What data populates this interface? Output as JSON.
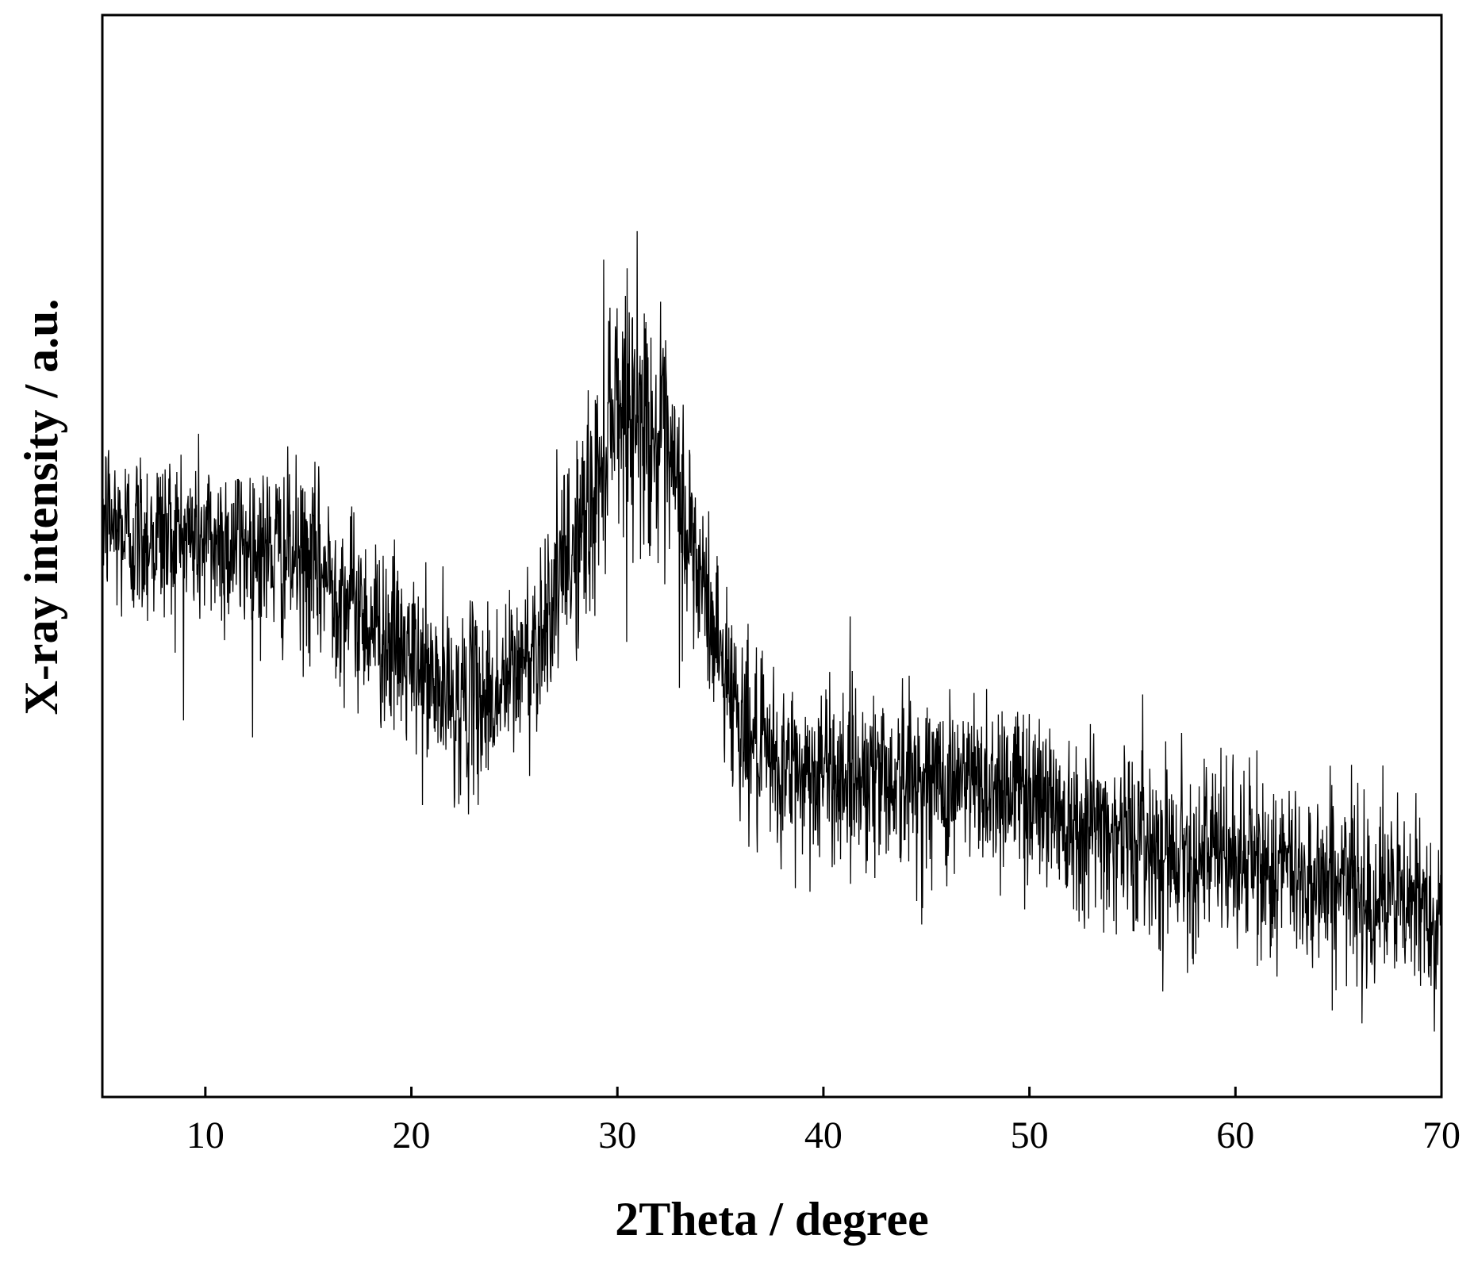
{
  "chart_data": {
    "type": "line",
    "title": "",
    "xlabel": "2Theta / degree",
    "ylabel": "X-ray intensity / a.u.",
    "xlim": [
      5,
      70
    ],
    "ylim": [
      0,
      100
    ],
    "x_ticks": [
      10,
      20,
      30,
      40,
      50,
      60,
      70
    ],
    "x_tick_labels": [
      "10",
      "20",
      "30",
      "40",
      "50",
      "60",
      "70"
    ],
    "y_ticks_shown": false,
    "grid": false,
    "legend": "none",
    "line_color": "#000000",
    "series": [
      {
        "x": [
          5,
          6,
          8,
          10,
          12,
          14,
          16,
          18,
          20,
          22,
          24,
          25,
          26,
          27,
          28,
          29,
          29.7,
          30.5,
          31.3,
          32,
          33,
          34,
          35,
          36,
          37,
          38,
          40,
          42,
          45,
          48,
          50,
          52,
          55,
          58,
          60,
          62,
          65,
          68,
          70
        ],
        "values": [
          54,
          52,
          52,
          51.5,
          51,
          50,
          48,
          44,
          40,
          36.5,
          37,
          39,
          42,
          47,
          51,
          56,
          65,
          64,
          63,
          60,
          55,
          48,
          41,
          35,
          31,
          30,
          30,
          30,
          29,
          29,
          28.5,
          26,
          24,
          22.5,
          22,
          21,
          20,
          18,
          17
        ]
      }
    ]
  }
}
